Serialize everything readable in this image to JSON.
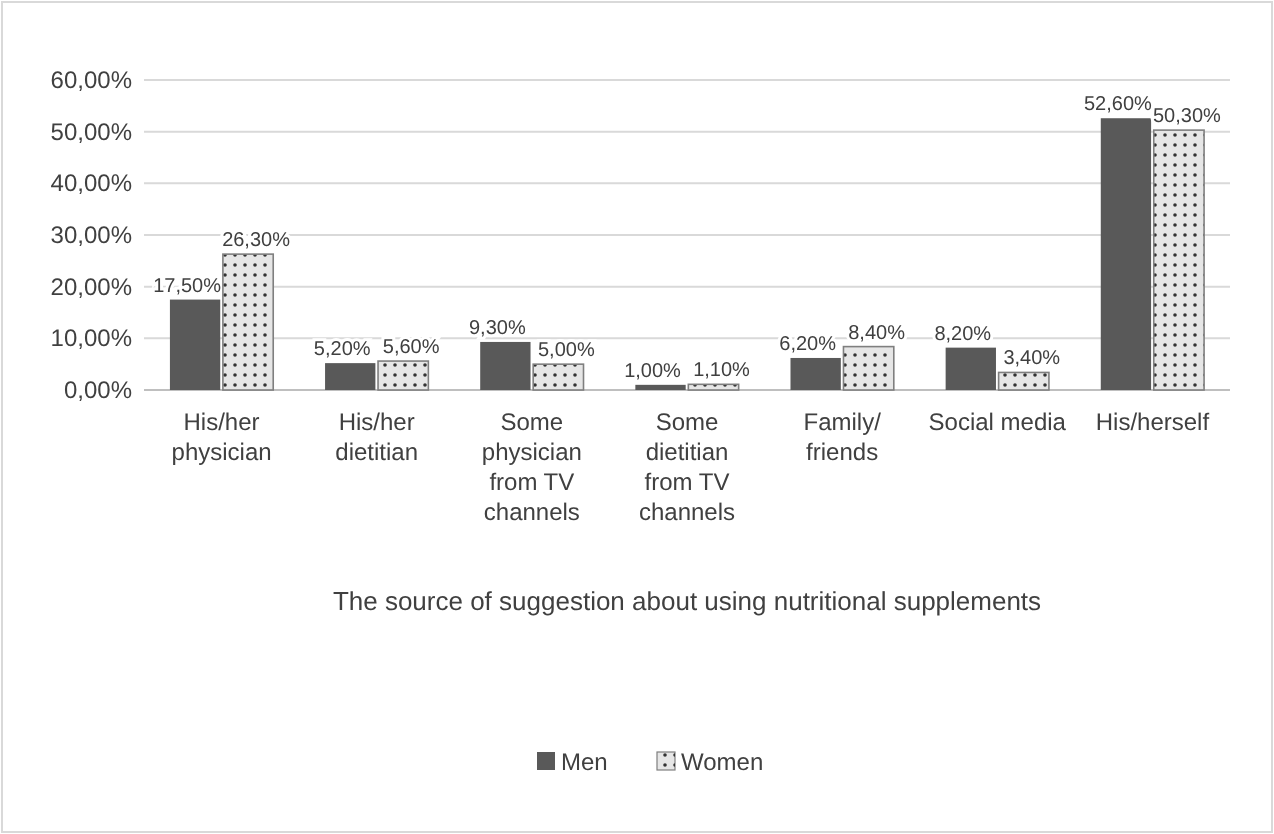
{
  "chart_data": {
    "type": "bar",
    "xlabel": "The source of suggestion about using nutritional supplements",
    "categories": [
      "His/her physician",
      "His/her dietitian",
      "Some physician from TV channels",
      "Some dietitian from TV channels",
      "Family/ friends",
      "Social media",
      "His/herself"
    ],
    "series": [
      {
        "name": "Men",
        "color": "#595959",
        "values": [
          17.5,
          5.2,
          9.3,
          1.0,
          6.2,
          8.2,
          52.6
        ],
        "value_labels": [
          "17,50%",
          "5,20%",
          "9,30%",
          "1,00%",
          "6,20%",
          "8,20%",
          "52,60%"
        ]
      },
      {
        "name": "Women",
        "color": "#e6e6e6",
        "values": [
          26.3,
          5.6,
          5.0,
          1.1,
          8.4,
          3.4,
          50.3
        ],
        "value_labels": [
          "26,30%",
          "5,60%",
          "5,00%",
          "1,10%",
          "8,40%",
          "3,40%",
          "50,30%"
        ]
      }
    ],
    "ylim": [
      0,
      60
    ],
    "yticks": [
      {
        "value": 0,
        "label": "0,00%"
      },
      {
        "value": 10,
        "label": "10,00%"
      },
      {
        "value": 20,
        "label": "20,00%"
      },
      {
        "value": 30,
        "label": "30,00%"
      },
      {
        "value": 40,
        "label": "40,00%"
      },
      {
        "value": 50,
        "label": "50,00%"
      },
      {
        "value": 60,
        "label": "60,00%"
      }
    ],
    "grid": "y",
    "legend": "bottom"
  }
}
